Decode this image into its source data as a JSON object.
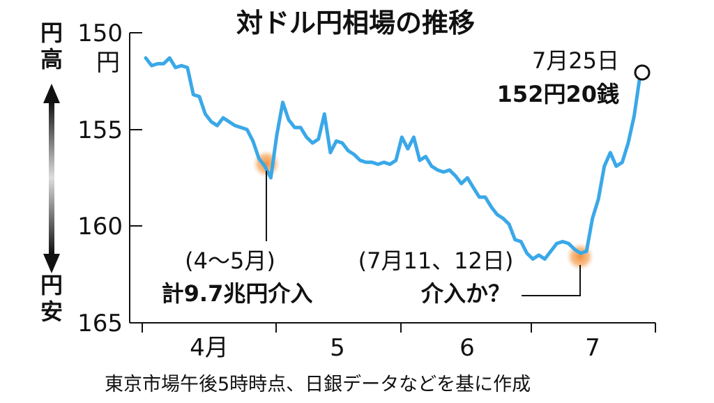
{
  "chart_data": {
    "type": "line",
    "title": "対ドル円相場の推移",
    "y_axis": {
      "ticks": [
        "150",
        "155",
        "160",
        "165"
      ],
      "unit_label": "円",
      "range": [
        150,
        165
      ],
      "inverted": true,
      "top_label": "円高",
      "bottom_label": "円安"
    },
    "x_axis": {
      "ticks": [
        "4月",
        "5",
        "6",
        "7"
      ]
    },
    "series": [
      {
        "color": "#3aa8e8",
        "x": [
          "4/1",
          "4/2",
          "4/3",
          "4/4",
          "4/5",
          "4/8",
          "4/9",
          "4/10",
          "4/11",
          "4/12",
          "4/15",
          "4/16",
          "4/17",
          "4/18",
          "4/19",
          "4/22",
          "4/23",
          "4/24",
          "4/25",
          "4/26",
          "4/29",
          "4/30",
          "5/1",
          "5/2",
          "5/3",
          "5/6",
          "5/7",
          "5/8",
          "5/9",
          "5/10",
          "5/13",
          "5/14",
          "5/15",
          "5/16",
          "5/17",
          "5/20",
          "5/21",
          "5/22",
          "5/23",
          "5/24",
          "5/27",
          "5/28",
          "5/29",
          "5/30",
          "5/31",
          "6/3",
          "6/4",
          "6/5",
          "6/6",
          "6/7",
          "6/10",
          "6/11",
          "6/12",
          "6/13",
          "6/14",
          "6/17",
          "6/18",
          "6/19",
          "6/20",
          "6/21",
          "6/24",
          "6/25",
          "6/26",
          "6/27",
          "6/28",
          "7/1",
          "7/2",
          "7/3",
          "7/4",
          "7/5",
          "7/8",
          "7/9",
          "7/10",
          "7/11",
          "7/12",
          "7/15",
          "7/16",
          "7/17",
          "7/18",
          "7/19",
          "7/22",
          "7/23",
          "7/24",
          "7/25"
        ],
        "values": [
          151.3,
          151.7,
          151.6,
          151.6,
          151.3,
          151.8,
          151.7,
          151.8,
          153.2,
          153.3,
          154.2,
          154.6,
          154.8,
          154.4,
          154.6,
          154.8,
          154.9,
          155.0,
          155.6,
          156.5,
          156.9,
          157.5,
          155.3,
          153.6,
          154.5,
          154.9,
          154.9,
          155.4,
          155.7,
          155.5,
          154.2,
          156.2,
          155.6,
          155.7,
          156.1,
          156.3,
          156.6,
          156.7,
          156.7,
          156.8,
          156.7,
          156.8,
          156.6,
          155.4,
          156.0,
          155.4,
          156.6,
          156.4,
          156.9,
          157.1,
          157.2,
          157.1,
          157.4,
          157.8,
          157.5,
          158.0,
          158.5,
          158.5,
          159.0,
          159.4,
          159.6,
          159.9,
          160.7,
          160.8,
          161.4,
          161.7,
          161.5,
          161.7,
          161.3,
          160.9,
          160.8,
          160.9,
          161.2,
          161.4,
          161.3,
          159.6,
          158.6,
          156.9,
          156.2,
          156.9,
          156.7,
          155.7,
          154.3,
          152.2
        ]
      }
    ],
    "annotations": [
      {
        "paren": "(4〜5月)",
        "text": "計9.7兆円介入",
        "at": "4/29"
      },
      {
        "paren": "(7月11、12日)",
        "text": "介入か？",
        "at": "7/11"
      }
    ],
    "endpoint_label": [
      "7月25日",
      "152円20銭"
    ],
    "source": "東京市場午後5時時点、日銀データなどを基に作成"
  }
}
